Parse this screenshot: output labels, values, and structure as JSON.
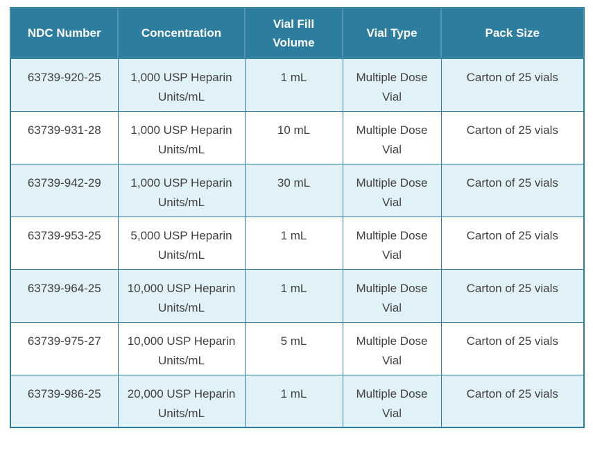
{
  "table": {
    "columns": [
      "NDC Number",
      "Concentration",
      "Vial Fill Volume",
      "Vial Type",
      "Pack Size"
    ],
    "rows": [
      [
        "63739-920-25",
        "1,000 USP Heparin Units/mL",
        "1 mL",
        "Multiple Dose Vial",
        "Carton of 25 vials"
      ],
      [
        "63739-931-28",
        "1,000 USP Heparin Units/mL",
        "10 mL",
        "Multiple Dose Vial",
        "Carton of 25 vials"
      ],
      [
        "63739-942-29",
        "1,000 USP Heparin Units/mL",
        "30 mL",
        "Multiple Dose Vial",
        "Carton of 25 vials"
      ],
      [
        "63739-953-25",
        "5,000 USP Heparin Units/mL",
        "1 mL",
        "Multiple Dose Vial",
        "Carton of 25 vials"
      ],
      [
        "63739-964-25",
        "10,000 USP Heparin Units/mL",
        "1 mL",
        "Multiple Dose Vial",
        "Carton of 25 vials"
      ],
      [
        "63739-975-27",
        "10,000 USP Heparin Units/mL",
        "5 mL",
        "Multiple Dose Vial",
        "Carton of 25 vials"
      ],
      [
        "63739-986-25",
        "20,000 USP Heparin Units/mL",
        "1 mL",
        "Multiple Dose Vial",
        "Carton of 25 vials"
      ]
    ]
  },
  "colors": {
    "header_bg": "#2d7d9f",
    "header_text": "#ffffff",
    "border_color": "#2d7d9f",
    "row_alt_bg": "#e1f1f8",
    "row_bg": "#ffffff",
    "body_text": "#404040",
    "page_bg": "#ffffff"
  }
}
